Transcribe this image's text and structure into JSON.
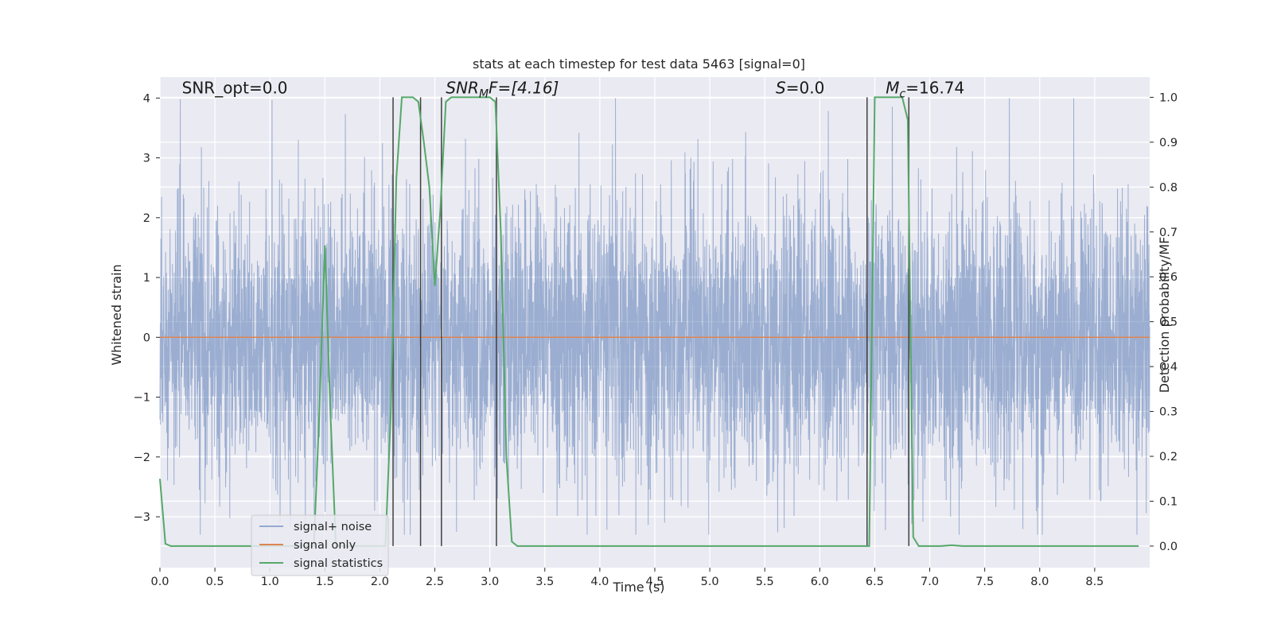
{
  "chart_data": {
    "type": "line",
    "title": "stats at each timestep for test data 5463 [signal=0]",
    "xlabel": "Time (s)",
    "ylabel": "Whitened strain",
    "ylabel_right": "Detection probability/MF",
    "xlim": [
      0,
      9.0
    ],
    "ylim": [
      -3.85,
      4.35
    ],
    "ylim_right": [
      -0.048,
      1.045
    ],
    "grid": true,
    "legend_position": "lower-left",
    "x_ticks": [
      0.0,
      0.5,
      1.0,
      1.5,
      2.0,
      2.5,
      3.0,
      3.5,
      4.0,
      4.5,
      5.0,
      5.5,
      6.0,
      6.5,
      7.0,
      7.5,
      8.0,
      8.5
    ],
    "x_tick_labels": [
      "0.0",
      "0.5",
      "1.0",
      "1.5",
      "2.0",
      "2.5",
      "3.0",
      "3.5",
      "4.0",
      "4.5",
      "5.0",
      "5.5",
      "6.0",
      "6.5",
      "7.0",
      "7.5",
      "8.0",
      "8.5"
    ],
    "y_ticks": [
      -3,
      -2,
      -1,
      0,
      1,
      2,
      3,
      4
    ],
    "y_tick_labels": [
      "−3",
      "−2",
      "−1",
      "0",
      "1",
      "2",
      "3",
      "4"
    ],
    "y_ticks_right": [
      0.0,
      0.1,
      0.2,
      0.3,
      0.4,
      0.5,
      0.6,
      0.7,
      0.8,
      0.9,
      1.0
    ],
    "y_tick_labels_right": [
      "0.0",
      "0.1",
      "0.2",
      "0.3",
      "0.4",
      "0.5",
      "0.6",
      "0.7",
      "0.8",
      "0.9",
      "1.0"
    ],
    "annotations": [
      {
        "text": "SNR_opt=0.0",
        "x": 0.2,
        "y": 4.08
      },
      {
        "main": "SNR",
        "sub": "M",
        "rest": "F=[4.16]",
        "x": 2.6,
        "y": 4.08
      },
      {
        "main": "S",
        "sub": "",
        "rest": "=0.0",
        "x": 5.6,
        "y": 4.08
      },
      {
        "main": "M",
        "sub": "c",
        "rest": "=16.74",
        "x": 6.6,
        "y": 4.08
      }
    ],
    "legend": [
      "signal+ noise",
      "signal only",
      "signal statistics"
    ],
    "series": [
      {
        "name": "signal+ noise",
        "color": "#4c72b0",
        "axis": "left",
        "style": "dense noise",
        "sample_rate_hz": 2048,
        "duration_s": 9.0,
        "amplitude_range": [
          -3.3,
          4.0
        ]
      },
      {
        "name": "signal only",
        "color": "#dd8452",
        "axis": "left",
        "x": [
          0.0,
          9.0
        ],
        "y": [
          0.0,
          0.0
        ]
      },
      {
        "name": "signal statistics",
        "color": "#55a868",
        "axis": "right",
        "x": [
          0.0,
          0.05,
          0.1,
          0.15,
          1.4,
          1.45,
          1.5,
          1.55,
          1.6,
          2.05,
          2.1,
          2.15,
          2.2,
          2.3,
          2.35,
          2.4,
          2.45,
          2.5,
          2.55,
          2.6,
          2.65,
          2.75,
          3.0,
          3.05,
          3.1,
          3.15,
          3.2,
          3.25,
          3.3,
          3.35,
          6.4,
          6.45,
          6.5,
          6.75,
          6.8,
          6.85,
          6.9,
          6.95,
          7.1,
          7.2,
          7.3,
          8.9
        ],
        "y": [
          0.15,
          0.005,
          0.0,
          0.0,
          0.0,
          0.3,
          0.67,
          0.3,
          0.0,
          0.0,
          0.3,
          0.82,
          1.0,
          1.0,
          0.99,
          0.9,
          0.8,
          0.58,
          0.75,
          0.99,
          1.0,
          1.0,
          1.0,
          0.99,
          0.7,
          0.2,
          0.01,
          0.0,
          0.0,
          0.0,
          0.0,
          0.0,
          1.0,
          1.0,
          0.95,
          0.02,
          0.0,
          0.0,
          0.0,
          0.002,
          0.0,
          0.0
        ]
      }
    ],
    "vertical_lines": [
      {
        "x": 2.12,
        "y_top": 1.0,
        "y_bottom": 0.0,
        "color": "#404040"
      },
      {
        "x": 2.37,
        "y_top": 1.0,
        "y_bottom": 0.0,
        "color": "#404040"
      },
      {
        "x": 2.56,
        "y_top": 1.0,
        "y_bottom": 0.0,
        "color": "#404040"
      },
      {
        "x": 3.06,
        "y_top": 1.0,
        "y_bottom": 0.0,
        "color": "#404040"
      },
      {
        "x": 6.43,
        "y_top": 1.0,
        "y_bottom": 0.0,
        "color": "#404040"
      },
      {
        "x": 6.81,
        "y_top": 1.0,
        "y_bottom": 0.0,
        "color": "#404040"
      }
    ]
  }
}
